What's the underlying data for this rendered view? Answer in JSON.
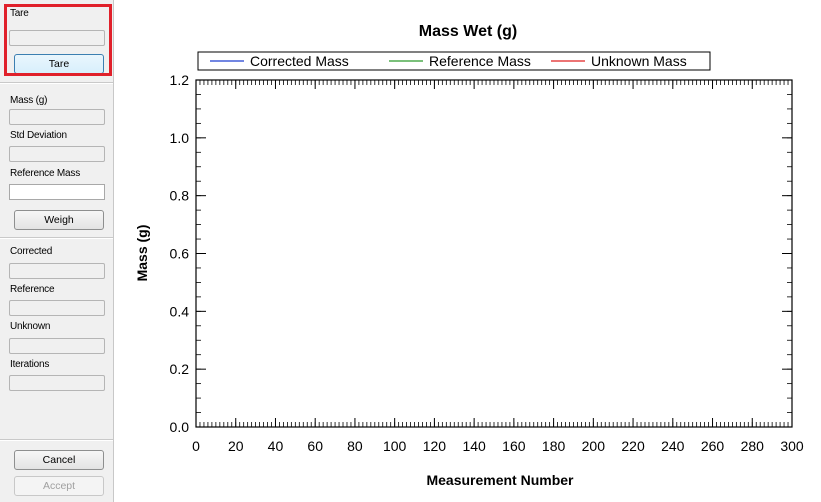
{
  "sidebar": {
    "tare_label": "Tare",
    "tare_value": "",
    "tare_button": "Tare",
    "mass_label": "Mass (g)",
    "mass_value": "",
    "std_dev_label": "Std Deviation",
    "std_dev_value": "",
    "reference_mass_label": "Reference Mass",
    "reference_mass_value": "",
    "weigh_button": "Weigh",
    "corrected_label": "Corrected",
    "corrected_value": "",
    "reference_label": "Reference",
    "reference_value": "",
    "unknown_label": "Unknown",
    "unknown_value": "",
    "iterations_label": "Iterations",
    "iterations_value": "",
    "cancel_button": "Cancel",
    "accept_button": "Accept",
    "highlight_color": "#e0202a"
  },
  "chart_data": {
    "type": "line",
    "title": "Mass Wet (g)",
    "xlabel": "Measurement Number",
    "ylabel": "Mass (g)",
    "xlim": [
      0,
      300
    ],
    "ylim": [
      0,
      1.2
    ],
    "x_ticks": [
      0,
      20,
      40,
      60,
      80,
      100,
      120,
      140,
      160,
      180,
      200,
      220,
      240,
      260,
      280,
      300
    ],
    "y_ticks": [
      "0.0",
      "0.2",
      "0.4",
      "0.6",
      "0.8",
      "1.0",
      "1.2"
    ],
    "grid": false,
    "legend_position": "top",
    "series": [
      {
        "name": "Corrected Mass",
        "color": "#1f3fd0",
        "values": []
      },
      {
        "name": "Reference Mass",
        "color": "#2a9a2a",
        "values": []
      },
      {
        "name": "Unknown Mass",
        "color": "#e02020",
        "values": []
      }
    ]
  }
}
